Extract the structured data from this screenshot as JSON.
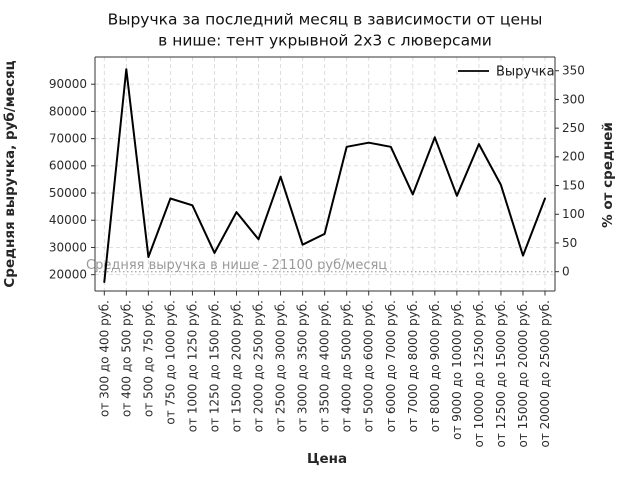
{
  "chart_data": {
    "type": "line",
    "title": "Выручка за последний месяц в зависимости от цены в нише: тент укрывной 2х3 с люверсами",
    "title_lines": [
      "Выручка за последний месяц в зависимости от цены",
      "в нише: тент укрывной 2х3 с люверсами"
    ],
    "xlabel": "Цена",
    "ylabel_left": "Средняя выручка, руб/месяц",
    "ylabel_right": "% от средней",
    "legend": {
      "entries": [
        "Выручка"
      ],
      "position": "upper right"
    },
    "grid": true,
    "categories": [
      "от 300 до 400 руб.",
      "от 400 до 500 руб.",
      "от 500 до 750 руб.",
      "от 750 до 1000 руб.",
      "от 1000 до 1250 руб.",
      "от 1250 до 1500 руб.",
      "от 1500 до 2000 руб.",
      "от 2000 до 2500 руб.",
      "от 2500 до 3000 руб.",
      "от 3000 до 3500 руб.",
      "от 3500 до 4000 руб.",
      "от 4000 до 5000 руб.",
      "от 5000 до 6000 руб.",
      "от 6000 до 7000 руб.",
      "от 7000 до 8000 руб.",
      "от 8000 до 9000 руб.",
      "от 9000 до 10000 руб.",
      "от 10000 до 12500 руб.",
      "от 12500 до 15000 руб.",
      "от 15000 до 20000 руб.",
      "от 20000 до 25000 руб."
    ],
    "series": [
      {
        "name": "Выручка",
        "values": [
          17300,
          95500,
          26500,
          48000,
          45500,
          28000,
          43000,
          33000,
          56000,
          31000,
          35000,
          67000,
          68500,
          67000,
          49500,
          70500,
          49000,
          68000,
          53000,
          27000,
          48000
        ]
      }
    ],
    "y_ticks_left": [
      20000,
      30000,
      40000,
      50000,
      60000,
      70000,
      80000,
      90000
    ],
    "y_ticks_right": [
      0,
      50,
      100,
      150,
      200,
      250,
      300,
      350
    ],
    "ylim_left": [
      14000,
      100000
    ],
    "average_line": {
      "value": 21100,
      "label": "Средняя выручка в нише - 21100 руб/месяц"
    },
    "colors": {
      "line": "#000000",
      "grid": "#d9d9d9",
      "spine": "#333333",
      "average_line": "#aaaaaa",
      "annotation_text": "#9a9a9a"
    }
  }
}
